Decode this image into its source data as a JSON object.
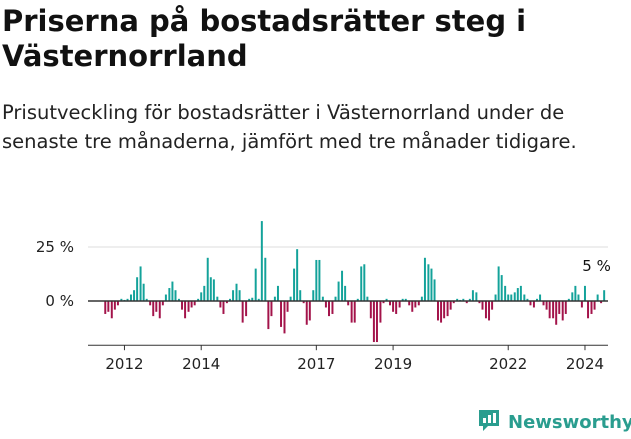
{
  "header": {
    "title": "Priserna på bostadsrätter steg i Västernorrland",
    "subtitle": "Prisutveckling för bostadsrätter i Västernorrland under de senaste tre månaderna, jämfört med tre månader tidigare."
  },
  "brand": {
    "name": "Newsworthy",
    "icon": "newsworthy-chart-logo-icon"
  },
  "colors": {
    "positive": "#13a29a",
    "negative": "#a3134a",
    "axis": "#333333",
    "grid": "#dddddd",
    "brand": "#2a9d8f"
  },
  "chart_data": {
    "type": "bar",
    "ylim": [
      -20,
      38
    ],
    "yticks": [
      {
        "value": 25,
        "label": "25 %"
      },
      {
        "value": 0,
        "label": "0 %"
      }
    ],
    "xticks": [
      {
        "value": 2012,
        "label": "2012"
      },
      {
        "value": 2014,
        "label": "2014"
      },
      {
        "value": 2017,
        "label": "2017"
      },
      {
        "value": 2019,
        "label": "2019"
      },
      {
        "value": 2022,
        "label": "2022"
      },
      {
        "value": 2024,
        "label": "2024"
      }
    ],
    "xlim": [
      2011.05,
      2024.6
    ],
    "grid": true,
    "annotation": {
      "label": "5 %",
      "x": 2024.25,
      "value": 5
    },
    "bars": [
      {
        "x": 2011.5,
        "value": -6
      },
      {
        "x": 2011.58,
        "value": -5
      },
      {
        "x": 2011.67,
        "value": -8
      },
      {
        "x": 2011.75,
        "value": -4
      },
      {
        "x": 2011.83,
        "value": -2
      },
      {
        "x": 2011.92,
        "value": 1
      },
      {
        "x": 2012.0,
        "value": 0.5
      },
      {
        "x": 2012.08,
        "value": 1
      },
      {
        "x": 2012.17,
        "value": 3
      },
      {
        "x": 2012.25,
        "value": 5
      },
      {
        "x": 2012.33,
        "value": 11
      },
      {
        "x": 2012.42,
        "value": 16
      },
      {
        "x": 2012.5,
        "value": 8
      },
      {
        "x": 2012.58,
        "value": 1
      },
      {
        "x": 2012.67,
        "value": -2
      },
      {
        "x": 2012.75,
        "value": -7
      },
      {
        "x": 2012.83,
        "value": -5
      },
      {
        "x": 2012.92,
        "value": -8
      },
      {
        "x": 2013.0,
        "value": -2
      },
      {
        "x": 2013.08,
        "value": 3
      },
      {
        "x": 2013.17,
        "value": 6
      },
      {
        "x": 2013.25,
        "value": 9
      },
      {
        "x": 2013.33,
        "value": 5
      },
      {
        "x": 2013.42,
        "value": 1
      },
      {
        "x": 2013.5,
        "value": -4
      },
      {
        "x": 2013.58,
        "value": -8
      },
      {
        "x": 2013.67,
        "value": -5
      },
      {
        "x": 2013.75,
        "value": -3
      },
      {
        "x": 2013.83,
        "value": -2
      },
      {
        "x": 2013.92,
        "value": 1
      },
      {
        "x": 2014.0,
        "value": 4
      },
      {
        "x": 2014.08,
        "value": 7
      },
      {
        "x": 2014.17,
        "value": 20
      },
      {
        "x": 2014.25,
        "value": 11
      },
      {
        "x": 2014.33,
        "value": 10
      },
      {
        "x": 2014.42,
        "value": 2
      },
      {
        "x": 2014.5,
        "value": -3
      },
      {
        "x": 2014.58,
        "value": -6
      },
      {
        "x": 2014.67,
        "value": -1
      },
      {
        "x": 2014.75,
        "value": 1
      },
      {
        "x": 2014.83,
        "value": 5
      },
      {
        "x": 2014.92,
        "value": 8
      },
      {
        "x": 2015.0,
        "value": 5
      },
      {
        "x": 2015.08,
        "value": -10
      },
      {
        "x": 2015.17,
        "value": -7
      },
      {
        "x": 2015.25,
        "value": 1
      },
      {
        "x": 2015.33,
        "value": 1.5
      },
      {
        "x": 2015.42,
        "value": 15
      },
      {
        "x": 2015.5,
        "value": 1
      },
      {
        "x": 2015.58,
        "value": 37
      },
      {
        "x": 2015.67,
        "value": 20
      },
      {
        "x": 2015.75,
        "value": -13
      },
      {
        "x": 2015.83,
        "value": -7
      },
      {
        "x": 2015.92,
        "value": 2
      },
      {
        "x": 2016.0,
        "value": 7
      },
      {
        "x": 2016.08,
        "value": -12
      },
      {
        "x": 2016.17,
        "value": -15
      },
      {
        "x": 2016.25,
        "value": -5
      },
      {
        "x": 2016.33,
        "value": 2
      },
      {
        "x": 2016.42,
        "value": 15
      },
      {
        "x": 2016.5,
        "value": 24
      },
      {
        "x": 2016.58,
        "value": 5
      },
      {
        "x": 2016.67,
        "value": -1
      },
      {
        "x": 2016.75,
        "value": -11
      },
      {
        "x": 2016.83,
        "value": -9
      },
      {
        "x": 2016.92,
        "value": 5
      },
      {
        "x": 2017.0,
        "value": 19
      },
      {
        "x": 2017.08,
        "value": 19
      },
      {
        "x": 2017.17,
        "value": 2
      },
      {
        "x": 2017.25,
        "value": -3
      },
      {
        "x": 2017.33,
        "value": -7
      },
      {
        "x": 2017.42,
        "value": -6
      },
      {
        "x": 2017.5,
        "value": 2
      },
      {
        "x": 2017.58,
        "value": 9
      },
      {
        "x": 2017.67,
        "value": 14
      },
      {
        "x": 2017.75,
        "value": 7
      },
      {
        "x": 2017.83,
        "value": -2
      },
      {
        "x": 2017.92,
        "value": -10
      },
      {
        "x": 2018.0,
        "value": -10
      },
      {
        "x": 2018.08,
        "value": 1
      },
      {
        "x": 2018.17,
        "value": 16
      },
      {
        "x": 2018.25,
        "value": 17
      },
      {
        "x": 2018.33,
        "value": 2
      },
      {
        "x": 2018.42,
        "value": -8
      },
      {
        "x": 2018.5,
        "value": -19
      },
      {
        "x": 2018.58,
        "value": -19
      },
      {
        "x": 2018.67,
        "value": -10
      },
      {
        "x": 2018.75,
        "value": -1
      },
      {
        "x": 2018.83,
        "value": 1
      },
      {
        "x": 2018.92,
        "value": -2
      },
      {
        "x": 2019.0,
        "value": -5
      },
      {
        "x": 2019.08,
        "value": -6
      },
      {
        "x": 2019.17,
        "value": -3
      },
      {
        "x": 2019.25,
        "value": 1
      },
      {
        "x": 2019.33,
        "value": 1
      },
      {
        "x": 2019.42,
        "value": -2
      },
      {
        "x": 2019.5,
        "value": -5
      },
      {
        "x": 2019.58,
        "value": -3
      },
      {
        "x": 2019.67,
        "value": -2
      },
      {
        "x": 2019.75,
        "value": 2
      },
      {
        "x": 2019.83,
        "value": 20
      },
      {
        "x": 2019.92,
        "value": 17
      },
      {
        "x": 2020.0,
        "value": 15
      },
      {
        "x": 2020.08,
        "value": 10
      },
      {
        "x": 2020.17,
        "value": -9
      },
      {
        "x": 2020.25,
        "value": -10
      },
      {
        "x": 2020.33,
        "value": -8
      },
      {
        "x": 2020.42,
        "value": -7
      },
      {
        "x": 2020.5,
        "value": -4
      },
      {
        "x": 2020.58,
        "value": -1
      },
      {
        "x": 2020.67,
        "value": 1
      },
      {
        "x": 2020.75,
        "value": 0.5
      },
      {
        "x": 2020.83,
        "value": 1
      },
      {
        "x": 2020.92,
        "value": -1
      },
      {
        "x": 2021.0,
        "value": 1
      },
      {
        "x": 2021.08,
        "value": 5
      },
      {
        "x": 2021.17,
        "value": 4
      },
      {
        "x": 2021.25,
        "value": -1
      },
      {
        "x": 2021.33,
        "value": -4
      },
      {
        "x": 2021.42,
        "value": -8
      },
      {
        "x": 2021.5,
        "value": -9
      },
      {
        "x": 2021.58,
        "value": -4
      },
      {
        "x": 2021.67,
        "value": 3
      },
      {
        "x": 2021.75,
        "value": 16
      },
      {
        "x": 2021.83,
        "value": 12
      },
      {
        "x": 2021.92,
        "value": 7
      },
      {
        "x": 2022.0,
        "value": 3
      },
      {
        "x": 2022.08,
        "value": 3
      },
      {
        "x": 2022.17,
        "value": 4
      },
      {
        "x": 2022.25,
        "value": 6
      },
      {
        "x": 2022.33,
        "value": 7
      },
      {
        "x": 2022.42,
        "value": 3
      },
      {
        "x": 2022.5,
        "value": 1
      },
      {
        "x": 2022.58,
        "value": -2
      },
      {
        "x": 2022.67,
        "value": -3
      },
      {
        "x": 2022.75,
        "value": 1
      },
      {
        "x": 2022.83,
        "value": 3
      },
      {
        "x": 2022.92,
        "value": -2
      },
      {
        "x": 2023.0,
        "value": -4
      },
      {
        "x": 2023.08,
        "value": -8
      },
      {
        "x": 2023.17,
        "value": -8
      },
      {
        "x": 2023.25,
        "value": -11
      },
      {
        "x": 2023.33,
        "value": -6
      },
      {
        "x": 2023.42,
        "value": -9
      },
      {
        "x": 2023.5,
        "value": -6
      },
      {
        "x": 2023.58,
        "value": 1
      },
      {
        "x": 2023.67,
        "value": 4
      },
      {
        "x": 2023.75,
        "value": 7
      },
      {
        "x": 2023.83,
        "value": 3
      },
      {
        "x": 2023.92,
        "value": -3
      },
      {
        "x": 2024.0,
        "value": 7
      },
      {
        "x": 2024.08,
        "value": -8
      },
      {
        "x": 2024.17,
        "value": -6
      },
      {
        "x": 2024.25,
        "value": -4
      },
      {
        "x": 2024.33,
        "value": 3
      },
      {
        "x": 2024.42,
        "value": -1
      },
      {
        "x": 2024.5,
        "value": 5
      }
    ]
  }
}
